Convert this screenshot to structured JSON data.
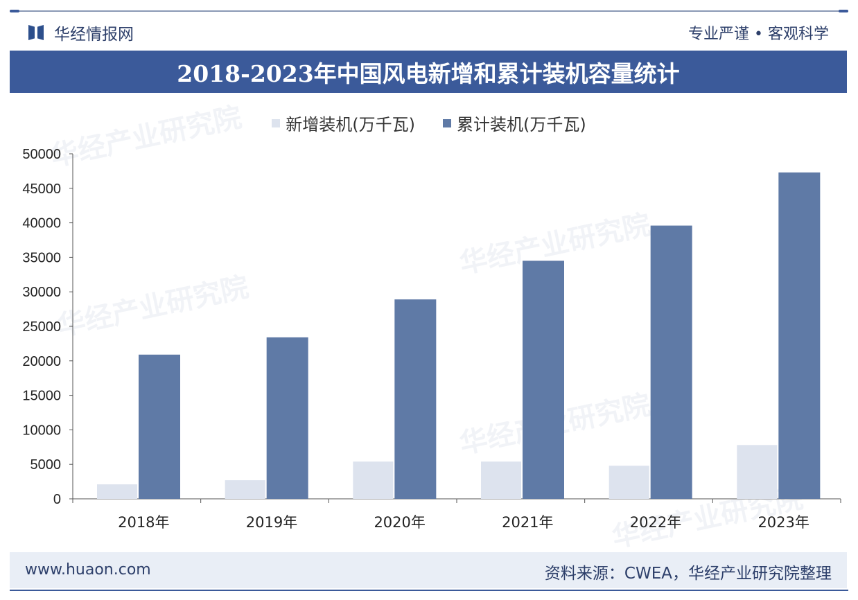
{
  "header": {
    "logo_text": "华经情报网",
    "slogan": "专业严谨 • 客观科学",
    "title": "2018-2023年中国风电新增和累计装机容量统计"
  },
  "watermark": "华经产业研究院",
  "footer": {
    "url": "www.huaon.com",
    "source": "资料来源：CWEA，华经产业研究院整理"
  },
  "chart_data": {
    "type": "bar",
    "title": "2018-2023年中国风电新增和累计装机容量统计",
    "categories": [
      "2018年",
      "2019年",
      "2020年",
      "2021年",
      "2022年",
      "2023年"
    ],
    "series": [
      {
        "name": "新增装机(万千瓦)",
        "color": "#dde3ee",
        "values": [
          2100,
          2700,
          5400,
          5400,
          4800,
          7800
        ]
      },
      {
        "name": "累计装机(万千瓦)",
        "color": "#5f7aa6",
        "values": [
          20900,
          23400,
          28900,
          34500,
          39600,
          47300
        ]
      }
    ],
    "ylim": [
      0,
      50000
    ],
    "yticks": [
      0,
      5000,
      10000,
      15000,
      20000,
      25000,
      30000,
      35000,
      40000,
      45000,
      50000
    ],
    "xlabel": "",
    "ylabel": "",
    "grid": false,
    "legend_position": "top"
  }
}
